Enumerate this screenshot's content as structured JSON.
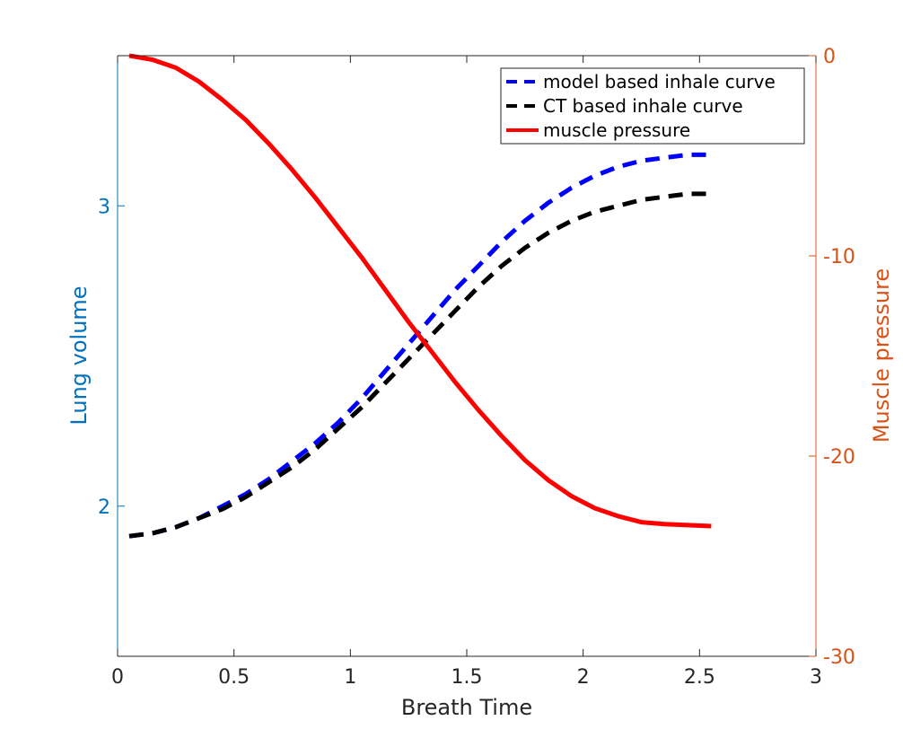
{
  "chart_data": {
    "type": "line",
    "xlabel": "Breath Time",
    "ylabel_left": "Lung volume",
    "ylabel_right": "Muscle pressure",
    "xlim": [
      0,
      3
    ],
    "ylim_left": [
      1.5,
      3.5
    ],
    "ylim_right": [
      -30,
      0
    ],
    "x_ticks": [
      "0",
      "0.5",
      "1",
      "1.5",
      "2",
      "2.5",
      "3"
    ],
    "y_left_ticks": [
      "2",
      "3"
    ],
    "y_right_ticks": [
      "0",
      "-10",
      "-20",
      "-30"
    ],
    "grid": false,
    "legend_position": "top-right",
    "colors": {
      "left_axis": "#0072BD",
      "right_axis": "#D95319",
      "axis_box": "#262626"
    },
    "series": [
      {
        "name": "model based inhale curve",
        "axis": "left",
        "color": "#0000ff",
        "style": "dashed",
        "x": [
          0.05,
          0.15,
          0.25,
          0.35,
          0.45,
          0.55,
          0.65,
          0.75,
          0.85,
          0.95,
          1.05,
          1.15,
          1.25,
          1.35,
          1.45,
          1.55,
          1.65,
          1.75,
          1.85,
          1.95,
          2.05,
          2.15,
          2.25,
          2.35,
          2.45,
          2.55
        ],
        "y": [
          1.9,
          1.91,
          1.93,
          1.96,
          2.0,
          2.04,
          2.09,
          2.15,
          2.21,
          2.28,
          2.36,
          2.45,
          2.54,
          2.63,
          2.72,
          2.8,
          2.88,
          2.95,
          3.01,
          3.06,
          3.1,
          3.13,
          3.15,
          3.16,
          3.17,
          3.17
        ]
      },
      {
        "name": "CT based inhale curve",
        "axis": "left",
        "color": "#000000",
        "style": "dashed",
        "x": [
          0.05,
          0.15,
          0.25,
          0.35,
          0.45,
          0.55,
          0.65,
          0.75,
          0.85,
          0.95,
          1.05,
          1.15,
          1.25,
          1.35,
          1.45,
          1.55,
          1.65,
          1.75,
          1.85,
          1.95,
          2.05,
          2.15,
          2.25,
          2.35,
          2.45,
          2.55
        ],
        "y": [
          1.9,
          1.91,
          1.93,
          1.96,
          1.99,
          2.03,
          2.08,
          2.13,
          2.19,
          2.26,
          2.33,
          2.41,
          2.49,
          2.57,
          2.65,
          2.73,
          2.8,
          2.86,
          2.91,
          2.95,
          2.98,
          3.0,
          3.02,
          3.03,
          3.04,
          3.04
        ]
      },
      {
        "name": "muscle pressure",
        "axis": "right",
        "color": "#ff0000",
        "style": "solid",
        "x": [
          0.05,
          0.15,
          0.25,
          0.35,
          0.45,
          0.55,
          0.65,
          0.75,
          0.85,
          0.95,
          1.05,
          1.15,
          1.25,
          1.35,
          1.45,
          1.55,
          1.65,
          1.75,
          1.85,
          1.95,
          2.05,
          2.15,
          2.25,
          2.35,
          2.45,
          2.55
        ],
        "y": [
          0.0,
          -0.2,
          -0.6,
          -1.3,
          -2.2,
          -3.2,
          -4.4,
          -5.7,
          -7.1,
          -8.6,
          -10.1,
          -11.7,
          -13.3,
          -14.8,
          -16.3,
          -17.7,
          -19.0,
          -20.2,
          -21.2,
          -22.0,
          -22.6,
          -23.0,
          -23.3,
          -23.4,
          -23.45,
          -23.5
        ]
      }
    ]
  }
}
